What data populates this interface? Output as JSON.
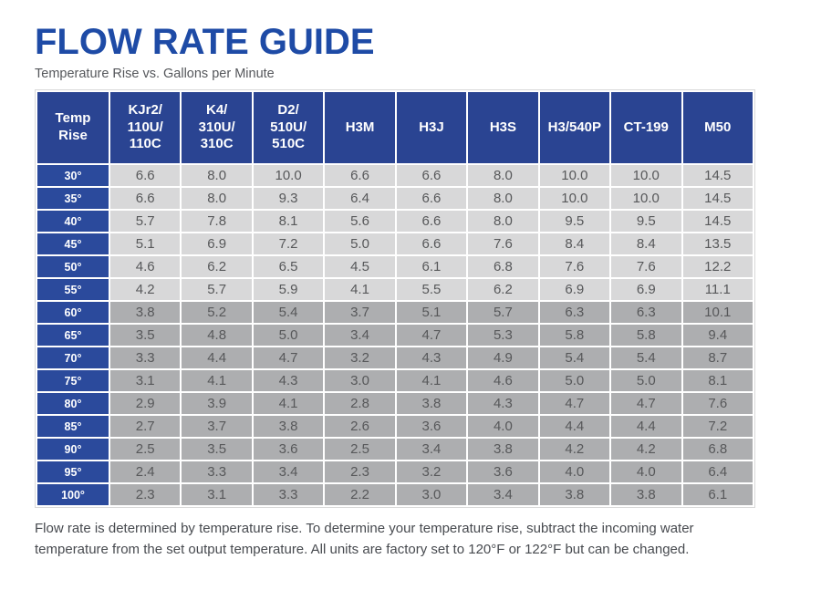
{
  "page": {
    "title": "FLOW RATE GUIDE",
    "subtitle": "Temperature Rise vs. Gallons per Minute",
    "footer_note": "Flow rate is determined by temperature rise. To determine your temperature rise, subtract the incoming water temperature from the set output temperature. All units are factory set to 120°F or 122°F but can be changed."
  },
  "colors": {
    "title_blue": "#1e4ba6",
    "header_blue": "#2a4492",
    "temp_cell_blue": "#2b4a9c",
    "row_light_gray": "#d8d8d9",
    "row_dark_gray": "#adaeb0",
    "cell_text": "#57585a",
    "footer_text": "#474a4f"
  },
  "chart_data": {
    "type": "table",
    "title": "Flow Rate Guide",
    "subtitle": "Temperature Rise vs. Gallons per Minute",
    "units": "Gallons per Minute",
    "columns": [
      "Temp\nRise",
      "KJr2/\n110U/\n110C",
      "K4/\n310U/\n310C",
      "D2/\n510U/\n510C",
      "H3M",
      "H3J",
      "H3S",
      "H3/540P",
      "CT-199",
      "M50"
    ],
    "rows": [
      {
        "temp_rise": "30°",
        "shade": "light",
        "values": [
          "6.6",
          "8.0",
          "10.0",
          "6.6",
          "6.6",
          "8.0",
          "10.0",
          "10.0",
          "14.5"
        ]
      },
      {
        "temp_rise": "35°",
        "shade": "light",
        "values": [
          "6.6",
          "8.0",
          "9.3",
          "6.4",
          "6.6",
          "8.0",
          "10.0",
          "10.0",
          "14.5"
        ]
      },
      {
        "temp_rise": "40°",
        "shade": "light",
        "values": [
          "5.7",
          "7.8",
          "8.1",
          "5.6",
          "6.6",
          "8.0",
          "9.5",
          "9.5",
          "14.5"
        ]
      },
      {
        "temp_rise": "45°",
        "shade": "light",
        "values": [
          "5.1",
          "6.9",
          "7.2",
          "5.0",
          "6.6",
          "7.6",
          "8.4",
          "8.4",
          "13.5"
        ]
      },
      {
        "temp_rise": "50°",
        "shade": "light",
        "values": [
          "4.6",
          "6.2",
          "6.5",
          "4.5",
          "6.1",
          "6.8",
          "7.6",
          "7.6",
          "12.2"
        ]
      },
      {
        "temp_rise": "55°",
        "shade": "light",
        "values": [
          "4.2",
          "5.7",
          "5.9",
          "4.1",
          "5.5",
          "6.2",
          "6.9",
          "6.9",
          "11.1"
        ]
      },
      {
        "temp_rise": "60°",
        "shade": "dark",
        "values": [
          "3.8",
          "5.2",
          "5.4",
          "3.7",
          "5.1",
          "5.7",
          "6.3",
          "6.3",
          "10.1"
        ]
      },
      {
        "temp_rise": "65°",
        "shade": "dark",
        "values": [
          "3.5",
          "4.8",
          "5.0",
          "3.4",
          "4.7",
          "5.3",
          "5.8",
          "5.8",
          "9.4"
        ]
      },
      {
        "temp_rise": "70°",
        "shade": "dark",
        "values": [
          "3.3",
          "4.4",
          "4.7",
          "3.2",
          "4.3",
          "4.9",
          "5.4",
          "5.4",
          "8.7"
        ]
      },
      {
        "temp_rise": "75°",
        "shade": "dark",
        "values": [
          "3.1",
          "4.1",
          "4.3",
          "3.0",
          "4.1",
          "4.6",
          "5.0",
          "5.0",
          "8.1"
        ]
      },
      {
        "temp_rise": "80°",
        "shade": "dark",
        "values": [
          "2.9",
          "3.9",
          "4.1",
          "2.8",
          "3.8",
          "4.3",
          "4.7",
          "4.7",
          "7.6"
        ]
      },
      {
        "temp_rise": "85°",
        "shade": "dark",
        "values": [
          "2.7",
          "3.7",
          "3.8",
          "2.6",
          "3.6",
          "4.0",
          "4.4",
          "4.4",
          "7.2"
        ]
      },
      {
        "temp_rise": "90°",
        "shade": "dark",
        "values": [
          "2.5",
          "3.5",
          "3.6",
          "2.5",
          "3.4",
          "3.8",
          "4.2",
          "4.2",
          "6.8"
        ]
      },
      {
        "temp_rise": "95°",
        "shade": "dark",
        "values": [
          "2.4",
          "3.3",
          "3.4",
          "2.3",
          "3.2",
          "3.6",
          "4.0",
          "4.0",
          "6.4"
        ]
      },
      {
        "temp_rise": "100°",
        "shade": "dark",
        "values": [
          "2.3",
          "3.1",
          "3.3",
          "2.2",
          "3.0",
          "3.4",
          "3.8",
          "3.8",
          "6.1"
        ]
      }
    ]
  }
}
